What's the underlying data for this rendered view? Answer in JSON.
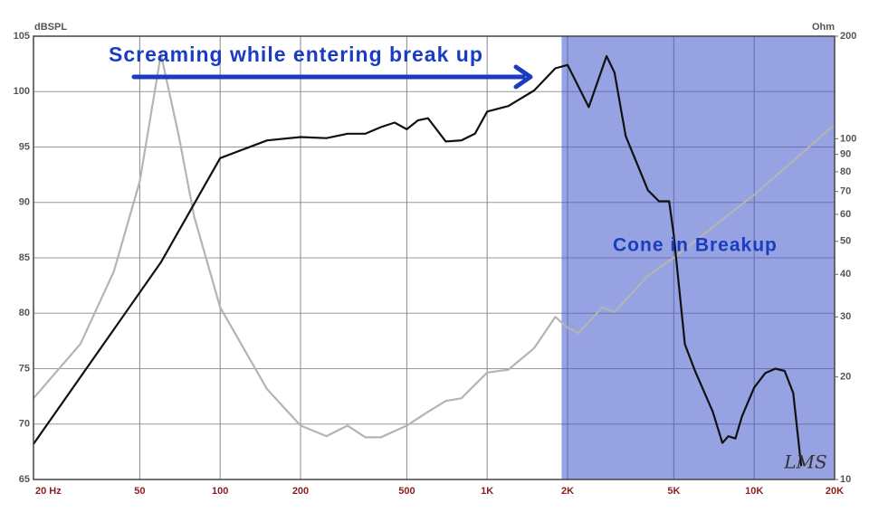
{
  "chart_data": {
    "type": "line",
    "xscale": "log",
    "y2scale": "log",
    "ylabel": "dBSPL",
    "y2label": "Ohm",
    "annotations": [
      "Screaming while entering break up",
      "Cone in Breakup"
    ],
    "logo": "LMS",
    "xlim": [
      20,
      20000
    ],
    "ylim": [
      65,
      105
    ],
    "y2lim": [
      10,
      200
    ],
    "xticks": [
      {
        "value": 20,
        "label": "20 Hz"
      },
      50,
      100,
      200,
      500,
      {
        "value": 1000,
        "label": "1K"
      },
      {
        "value": 2000,
        "label": "2K"
      },
      {
        "value": 5000,
        "label": "5K"
      },
      {
        "value": 10000,
        "label": "10K"
      },
      {
        "value": 20000,
        "label": "20K"
      }
    ],
    "yticks": [
      65,
      70,
      75,
      80,
      85,
      90,
      95,
      100,
      105
    ],
    "y2ticks": [
      10,
      20,
      30,
      40,
      50,
      60,
      70,
      80,
      90,
      100,
      200
    ],
    "grid": true,
    "shaded_region": {
      "xlim": [
        1900,
        20000
      ],
      "color": "#3f55c8"
    },
    "series": [
      {
        "color": "#111111",
        "x": [
          20,
          60,
          100,
          150,
          200,
          250,
          300,
          350,
          400,
          450,
          500,
          550,
          600,
          700,
          800,
          900,
          1000,
          1200,
          1500,
          1800,
          2000,
          2400,
          2800,
          3000,
          3300,
          4000,
          4400,
          4800,
          5000,
          5500,
          6000,
          7000,
          7600,
          8000,
          8500,
          9000,
          10000,
          11000,
          12000,
          13000,
          14000,
          15000
        ],
        "values": [
          68.2,
          84.6,
          94,
          95.6,
          95.9,
          95.8,
          96.2,
          96.2,
          96.8,
          97.2,
          96.6,
          97.4,
          97.6,
          95.5,
          95.6,
          96.2,
          98.2,
          98.7,
          100.1,
          102.1,
          102.4,
          98.6,
          103.2,
          101.7,
          96,
          91.1,
          90.1,
          90.1,
          87,
          77.2,
          74.8,
          71.1,
          68.3,
          68.9,
          68.7,
          70.7,
          73.3,
          74.6,
          75,
          74.8,
          72.8,
          66.2
        ]
      },
      {
        "color": "#b4b4b4",
        "axis": "y2",
        "x": [
          20,
          30,
          40,
          50,
          60,
          70,
          80,
          100,
          150,
          200,
          250,
          300,
          350,
          400,
          500,
          600,
          700,
          800,
          1000,
          1200,
          1500,
          1800,
          2000,
          2200,
          2500,
          2700,
          3000,
          4000,
          5000,
          10000,
          20000
        ],
        "values": [
          17.3,
          25,
          40.8,
          75,
          177,
          102,
          59,
          32,
          18.4,
          14.4,
          13.4,
          14.4,
          13.3,
          13.3,
          14.4,
          15.8,
          17,
          17.3,
          20.6,
          21,
          24.3,
          30,
          27.9,
          26.9,
          30,
          32,
          31,
          39.6,
          44.8,
          68.5,
          110
        ]
      }
    ]
  }
}
